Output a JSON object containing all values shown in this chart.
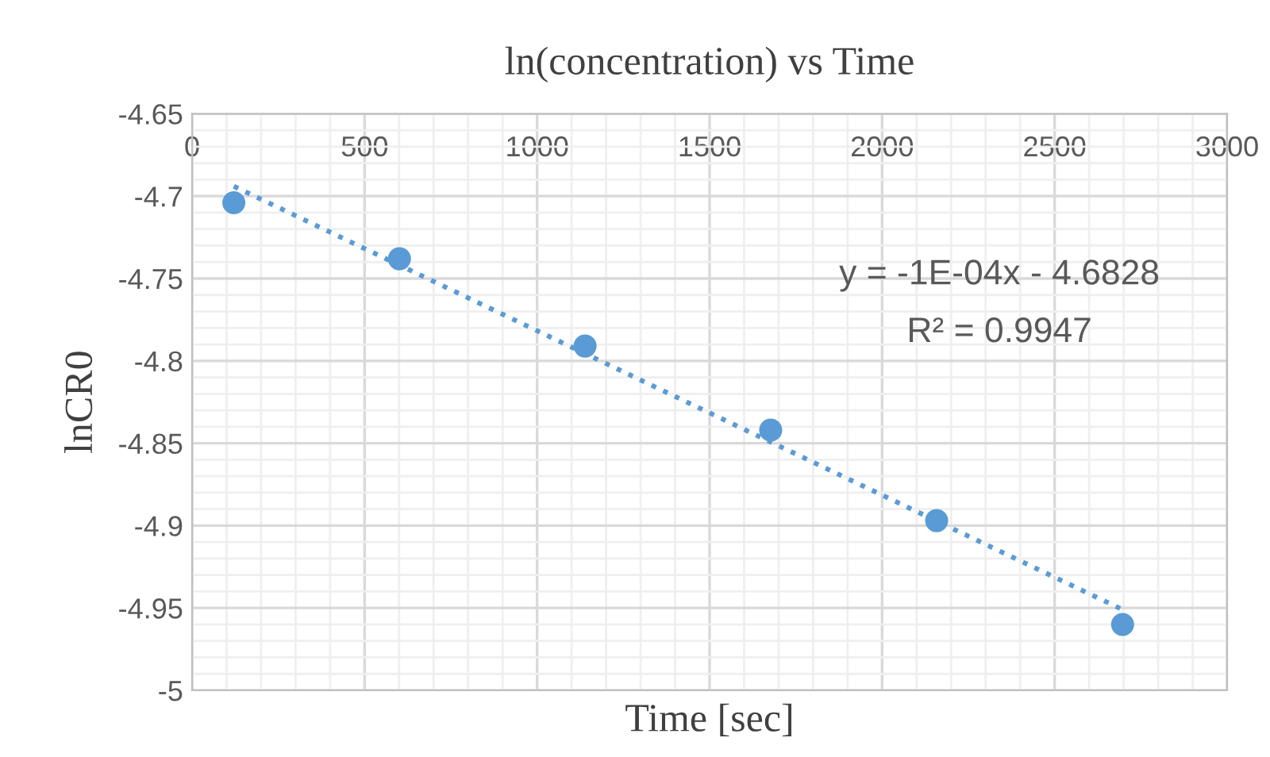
{
  "chart_data": {
    "type": "scatter",
    "title": "ln(concentration) vs Time",
    "xlabel": "Time [sec]",
    "ylabel": "lnCR0",
    "series": [
      {
        "color": "#5b9bd5",
        "x": [
          121,
          601,
          1139,
          1677,
          2158,
          2697
        ],
        "values": [
          -4.704,
          -4.738,
          -4.791,
          -4.842,
          -4.897,
          -4.96
        ],
        "marker": "circle"
      },
      {
        "type": "line",
        "color": "#5b9bd5",
        "x": [
          121,
          2697
        ],
        "values": [
          -4.694,
          -4.951
        ],
        "line_style": "dotted",
        "marker": "none"
      }
    ],
    "annotations": [
      "y = -1E-04x - 4.6828",
      "R² = 0.9947"
    ],
    "xlim": [
      0,
      3000
    ],
    "xticks": [
      0,
      500,
      1000,
      1500,
      2000,
      2500,
      3000
    ],
    "ylim": [
      -5,
      -4.65
    ],
    "yticks": [
      -5,
      -4.95,
      -4.9,
      -4.85,
      -4.8,
      -4.75,
      -4.7,
      -4.65
    ],
    "grid": true,
    "legend": false
  }
}
